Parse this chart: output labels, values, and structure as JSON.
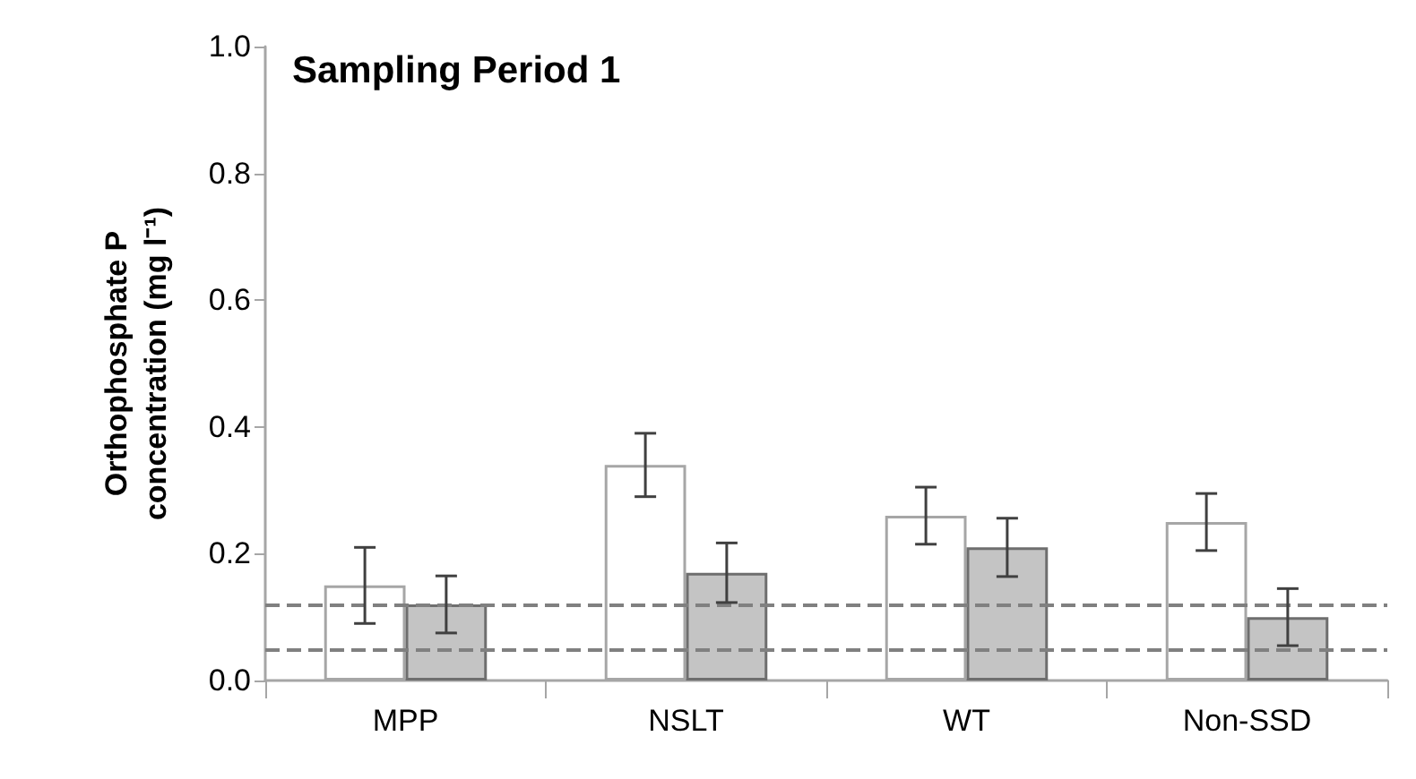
{
  "chart_data": {
    "type": "bar",
    "title": "Sampling Period 1",
    "ylabel": "Orthophosphate P concentration (mg l⁻¹)",
    "categories": [
      "MPP",
      "NSLT",
      "WT",
      "Non-SSD"
    ],
    "series": [
      {
        "color": "#ffffff",
        "values": [
          0.15,
          0.34,
          0.26,
          0.25
        ],
        "errors": [
          0.06,
          0.05,
          0.045,
          0.045
        ]
      },
      {
        "color": "#c4c4c4",
        "values": [
          0.12,
          0.17,
          0.21,
          0.1
        ],
        "errors": [
          0.045,
          0.047,
          0.046,
          0.045
        ]
      }
    ],
    "ylim": [
      0,
      1
    ],
    "yticks": [
      {
        "value": 0,
        "label": "0.0"
      },
      0.2,
      0.4,
      0.6,
      0.8,
      {
        "value": 1,
        "label": "1.0"
      }
    ],
    "ref_lines": [
      {
        "axis": "y",
        "value": 0.12,
        "color": "#808080",
        "line_style": "dashed"
      },
      {
        "axis": "y",
        "value": 0.05,
        "color": "#808080",
        "line_style": "dashed"
      }
    ],
    "grid": false
  }
}
